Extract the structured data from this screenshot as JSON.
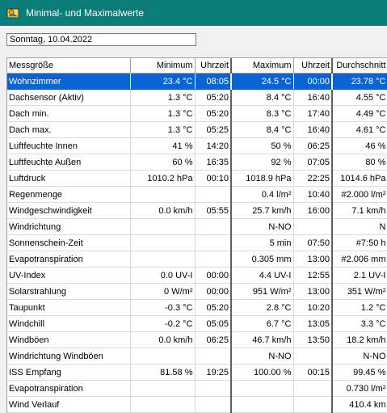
{
  "window": {
    "title": "Minimal- und Maximalwerte"
  },
  "date_field": {
    "value": "Sonntag, 10.04.2022"
  },
  "table": {
    "headers": [
      "Messgröße",
      "Minimum",
      "Uhrzeit",
      "Maximum",
      "Uhrzeit",
      "Durchschnitt"
    ],
    "rows": [
      [
        "Wohnzimmer",
        "23.4 °C",
        "08:05",
        "24.5 °C",
        "00:00",
        "23.78 °C"
      ],
      [
        "Dachsensor (Aktiv)",
        "1.3 °C",
        "05:20",
        "8.4 °C",
        "16:40",
        "4.55 °C"
      ],
      [
        "Dach min.",
        "1.3 °C",
        "05:20",
        "8.3 °C",
        "17:40",
        "4.49 °C"
      ],
      [
        "Dach max.",
        "1.3 °C",
        "05:25",
        "8.4 °C",
        "16:40",
        "4.61 °C"
      ],
      [
        "Luftfeuchte Innen",
        "41 %",
        "14:20",
        "50 %",
        "06:25",
        "46 %"
      ],
      [
        "Luftfeuchte Außen",
        "60 %",
        "16:35",
        "92 %",
        "07:05",
        "80 %"
      ],
      [
        "Luftdruck",
        "1010.2 hPa",
        "00:10",
        "1018.9 hPa",
        "22:25",
        "1014.6 hPa"
      ],
      [
        "Regenmenge",
        "",
        "",
        "0.4 l/m²",
        "10:40",
        "#2.000 l/m²"
      ],
      [
        "Windgeschwindigkeit",
        "0.0 km/h",
        "05:55",
        "25.7 km/h",
        "16:00",
        "7.1 km/h"
      ],
      [
        "Windrichtung",
        "",
        "",
        "N-NO",
        "",
        "N"
      ],
      [
        "Sonnenschein-Zeit",
        "",
        "",
        "5 min",
        "07:50",
        "#7:50 h"
      ],
      [
        "Evapotranspiration",
        "",
        "",
        "0.305 mm",
        "13:00",
        "#2.006 mm"
      ],
      [
        "UV-Index",
        "0.0 UV-I",
        "00:00",
        "4.4 UV-I",
        "12:55",
        "2.1 UV-I"
      ],
      [
        "Solarstrahlung",
        "0 W/m²",
        "00:00",
        "951 W/m²",
        "13:00",
        "351 W/m²"
      ],
      [
        "Taupunkt",
        "-0.3 °C",
        "05:20",
        "2.8 °C",
        "10:20",
        "1.2 °C"
      ],
      [
        "Windchill",
        "-0.2 °C",
        "05:05",
        "6.7 °C",
        "13:05",
        "3.3 °C"
      ],
      [
        "Windböen",
        "0.0 km/h",
        "06:25",
        "46.7 km/h",
        "13:50",
        "18.2 km/h"
      ],
      [
        "Windrichtung Windböen",
        "",
        "",
        "N-NO",
        "",
        "N-NO"
      ],
      [
        "ISS Empfang",
        "81.58 %",
        "19:25",
        "100.00 %",
        "00:15",
        "99.45 %"
      ],
      [
        "Evapotranspiration",
        "",
        "",
        "",
        "",
        "0.730 l/m²"
      ],
      [
        "Wind Verlauf",
        "",
        "",
        "",
        "",
        "410.4 km"
      ]
    ]
  },
  "colors": {
    "titlebar": "#0a7d7a",
    "selection": "#0a64d6"
  },
  "icons": {
    "app": "weather-app-icon"
  }
}
